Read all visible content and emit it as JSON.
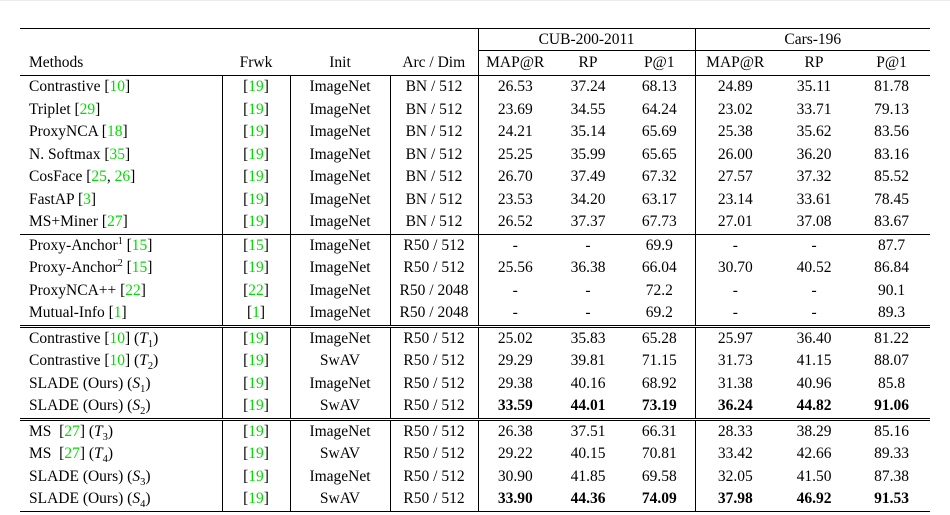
{
  "colors": {
    "citation_green": "#00dc00",
    "text": "#000000",
    "rule": "#000000",
    "background": "#ffffff"
  },
  "table": {
    "group_headers": [
      {
        "label": "CUB-200-2011",
        "span": 3
      },
      {
        "label": "Cars-196",
        "span": 3
      }
    ],
    "columns": [
      "Methods",
      "Frwk",
      "Init",
      "Arc / Dim",
      "MAP@R",
      "RP",
      "P@1",
      "MAP@R",
      "RP",
      "P@1"
    ],
    "sections": [
      {
        "rows": [
          {
            "method": [
              [
                "Contrastive [",
                "p"
              ],
              [
                "10",
                "c"
              ],
              [
                "]",
                "p"
              ]
            ],
            "frwk": [
              [
                "[",
                "p"
              ],
              [
                "19",
                "c"
              ],
              [
                "]",
                "p"
              ]
            ],
            "init": "ImageNet",
            "arc": "BN / 512",
            "values": [
              "26.53",
              "37.24",
              "68.13",
              "24.89",
              "35.11",
              "81.78"
            ],
            "bold": false
          },
          {
            "method": [
              [
                "Triplet [",
                "p"
              ],
              [
                "29",
                "c"
              ],
              [
                "]",
                "p"
              ]
            ],
            "frwk": [
              [
                "[",
                "p"
              ],
              [
                "19",
                "c"
              ],
              [
                "]",
                "p"
              ]
            ],
            "init": "ImageNet",
            "arc": "BN / 512",
            "values": [
              "23.69",
              "34.55",
              "64.24",
              "23.02",
              "33.71",
              "79.13"
            ],
            "bold": false
          },
          {
            "method": [
              [
                "ProxyNCA [",
                "p"
              ],
              [
                "18",
                "c"
              ],
              [
                "]",
                "p"
              ]
            ],
            "frwk": [
              [
                "[",
                "p"
              ],
              [
                "19",
                "c"
              ],
              [
                "]",
                "p"
              ]
            ],
            "init": "ImageNet",
            "arc": "BN / 512",
            "values": [
              "24.21",
              "35.14",
              "65.69",
              "25.38",
              "35.62",
              "83.56"
            ],
            "bold": false
          },
          {
            "method": [
              [
                "N. Softmax [",
                "p"
              ],
              [
                "35",
                "c"
              ],
              [
                "]",
                "p"
              ]
            ],
            "frwk": [
              [
                "[",
                "p"
              ],
              [
                "19",
                "c"
              ],
              [
                "]",
                "p"
              ]
            ],
            "init": "ImageNet",
            "arc": "BN / 512",
            "values": [
              "25.25",
              "35.99",
              "65.65",
              "26.00",
              "36.20",
              "83.16"
            ],
            "bold": false
          },
          {
            "method": [
              [
                "CosFace [",
                "p"
              ],
              [
                "25",
                "c"
              ],
              [
                ", ",
                "p"
              ],
              [
                "26",
                "c"
              ],
              [
                "]",
                "p"
              ]
            ],
            "frwk": [
              [
                "[",
                "p"
              ],
              [
                "19",
                "c"
              ],
              [
                "]",
                "p"
              ]
            ],
            "init": "ImageNet",
            "arc": "BN / 512",
            "values": [
              "26.70",
              "37.49",
              "67.32",
              "27.57",
              "37.32",
              "85.52"
            ],
            "bold": false
          },
          {
            "method": [
              [
                "FastAP [",
                "p"
              ],
              [
                "3",
                "c"
              ],
              [
                "]",
                "p"
              ]
            ],
            "frwk": [
              [
                "[",
                "p"
              ],
              [
                "19",
                "c"
              ],
              [
                "]",
                "p"
              ]
            ],
            "init": "ImageNet",
            "arc": "BN / 512",
            "values": [
              "23.53",
              "34.20",
              "63.17",
              "23.14",
              "33.61",
              "78.45"
            ],
            "bold": false
          },
          {
            "method": [
              [
                "MS+Miner [",
                "p"
              ],
              [
                "27",
                "c"
              ],
              [
                "]",
                "p"
              ]
            ],
            "frwk": [
              [
                "[",
                "p"
              ],
              [
                "19",
                "c"
              ],
              [
                "]",
                "p"
              ]
            ],
            "init": "ImageNet",
            "arc": "BN / 512",
            "values": [
              "26.52",
              "37.37",
              "67.73",
              "27.01",
              "37.08",
              "83.67"
            ],
            "bold": false
          }
        ]
      },
      {
        "rows": [
          {
            "method": [
              [
                "Proxy-Anchor",
                "p"
              ],
              [
                "1",
                "sup"
              ],
              [
                " [",
                "p"
              ],
              [
                "15",
                "c"
              ],
              [
                "]",
                "p"
              ]
            ],
            "frwk": [
              [
                "[",
                "p"
              ],
              [
                "15",
                "c"
              ],
              [
                "]",
                "p"
              ]
            ],
            "init": "ImageNet",
            "arc": "R50 / 512",
            "values": [
              "-",
              "-",
              "69.9",
              "-",
              "-",
              "87.7"
            ],
            "bold": false
          },
          {
            "method": [
              [
                "Proxy-Anchor",
                "p"
              ],
              [
                "2",
                "sup"
              ],
              [
                " [",
                "p"
              ],
              [
                "15",
                "c"
              ],
              [
                "]",
                "p"
              ]
            ],
            "frwk": [
              [
                "[",
                "p"
              ],
              [
                "19",
                "c"
              ],
              [
                "]",
                "p"
              ]
            ],
            "init": "ImageNet",
            "arc": "R50 / 512",
            "values": [
              "25.56",
              "36.38",
              "66.04",
              "30.70",
              "40.52",
              "86.84"
            ],
            "bold": false
          },
          {
            "method": [
              [
                "ProxyNCA++ [",
                "p"
              ],
              [
                "22",
                "c"
              ],
              [
                "]",
                "p"
              ]
            ],
            "frwk": [
              [
                "[",
                "p"
              ],
              [
                "22",
                "c"
              ],
              [
                "]",
                "p"
              ]
            ],
            "init": "ImageNet",
            "arc": "R50 / 2048",
            "values": [
              "-",
              "-",
              "72.2",
              "-",
              "-",
              "90.1"
            ],
            "bold": false
          },
          {
            "method": [
              [
                "Mutual-Info [",
                "p"
              ],
              [
                "1",
                "c"
              ],
              [
                "]",
                "p"
              ]
            ],
            "frwk": [
              [
                "[",
                "p"
              ],
              [
                "1",
                "c"
              ],
              [
                "]",
                "p"
              ]
            ],
            "init": "ImageNet",
            "arc": "R50 / 2048",
            "values": [
              "-",
              "-",
              "69.2",
              "-",
              "-",
              "89.3"
            ],
            "bold": false
          }
        ]
      },
      {
        "rows": [
          {
            "method": [
              [
                "Contrastive [",
                "p"
              ],
              [
                "10",
                "c"
              ],
              [
                "] (",
                "p"
              ],
              [
                "T",
                "i"
              ],
              [
                "1",
                "sub"
              ],
              [
                ")",
                "p"
              ]
            ],
            "frwk": [
              [
                "[",
                "p"
              ],
              [
                "19",
                "c"
              ],
              [
                "]",
                "p"
              ]
            ],
            "init": "ImageNet",
            "arc": "R50 / 512",
            "values": [
              "25.02",
              "35.83",
              "65.28",
              "25.97",
              "36.40",
              "81.22"
            ],
            "bold": false
          },
          {
            "method": [
              [
                "Contrastive [",
                "p"
              ],
              [
                "10",
                "c"
              ],
              [
                "] (",
                "p"
              ],
              [
                "T",
                "i"
              ],
              [
                "2",
                "sub"
              ],
              [
                ")",
                "p"
              ]
            ],
            "frwk": [
              [
                "[",
                "p"
              ],
              [
                "19",
                "c"
              ],
              [
                "]",
                "p"
              ]
            ],
            "init": "SwAV",
            "arc": "R50 / 512",
            "values": [
              "29.29",
              "39.81",
              "71.15",
              "31.73",
              "41.15",
              "88.07"
            ],
            "bold": false
          },
          {
            "method": [
              [
                "SLADE (Ours) (",
                "p"
              ],
              [
                "S",
                "i"
              ],
              [
                "1",
                "sub"
              ],
              [
                ")",
                "p"
              ]
            ],
            "frwk": [
              [
                "[",
                "p"
              ],
              [
                "19",
                "c"
              ],
              [
                "]",
                "p"
              ]
            ],
            "init": "ImageNet",
            "arc": "R50 / 512",
            "values": [
              "29.38",
              "40.16",
              "68.92",
              "31.38",
              "40.96",
              "85.8"
            ],
            "bold": false
          },
          {
            "method": [
              [
                "SLADE (Ours) (",
                "p"
              ],
              [
                "S",
                "i"
              ],
              [
                "2",
                "sub"
              ],
              [
                ")",
                "p"
              ]
            ],
            "frwk": [
              [
                "[",
                "p"
              ],
              [
                "19",
                "c"
              ],
              [
                "]",
                "p"
              ]
            ],
            "init": "SwAV",
            "arc": "R50 / 512",
            "values": [
              "33.59",
              "44.01",
              "73.19",
              "36.24",
              "44.82",
              "91.06"
            ],
            "bold": true
          }
        ]
      },
      {
        "rows": [
          {
            "method": [
              [
                "MS [",
                "p"
              ],
              [
                "27",
                "c"
              ],
              [
                "] (",
                "p"
              ],
              [
                "T",
                "i"
              ],
              [
                "3",
                "sub"
              ],
              [
                ")",
                "p"
              ]
            ],
            "frwk": [
              [
                "[",
                "p"
              ],
              [
                "19",
                "c"
              ],
              [
                "]",
                "p"
              ]
            ],
            "init": "ImageNet",
            "arc": "R50 / 512",
            "values": [
              "26.38",
              "37.51",
              "66.31",
              "28.33",
              "38.29",
              "85.16"
            ],
            "bold": false
          },
          {
            "method": [
              [
                "MS [",
                "p"
              ],
              [
                "27",
                "c"
              ],
              [
                "] (",
                "p"
              ],
              [
                "T",
                "i"
              ],
              [
                "4",
                "sub"
              ],
              [
                ")",
                "p"
              ]
            ],
            "frwk": [
              [
                "[",
                "p"
              ],
              [
                "19",
                "c"
              ],
              [
                "]",
                "p"
              ]
            ],
            "init": "SwAV",
            "arc": "R50 / 512",
            "values": [
              "29.22",
              "40.15",
              "70.81",
              "33.42",
              "42.66",
              "89.33"
            ],
            "bold": false
          },
          {
            "method": [
              [
                "SLADE (Ours) (",
                "p"
              ],
              [
                "S",
                "i"
              ],
              [
                "3",
                "sub"
              ],
              [
                ")",
                "p"
              ]
            ],
            "frwk": [
              [
                "[",
                "p"
              ],
              [
                "19",
                "c"
              ],
              [
                "]",
                "p"
              ]
            ],
            "init": "ImageNet",
            "arc": "R50 / 512",
            "values": [
              "30.90",
              "41.85",
              "69.58",
              "32.05",
              "41.50",
              "87.38"
            ],
            "bold": false
          },
          {
            "method": [
              [
                "SLADE (Ours) (",
                "p"
              ],
              [
                "S",
                "i"
              ],
              [
                "4",
                "sub"
              ],
              [
                ")",
                "p"
              ]
            ],
            "frwk": [
              [
                "[",
                "p"
              ],
              [
                "19",
                "c"
              ],
              [
                "]",
                "p"
              ]
            ],
            "init": "SwAV",
            "arc": "R50 / 512",
            "values": [
              "33.90",
              "44.36",
              "74.09",
              "37.98",
              "46.92",
              "91.53"
            ],
            "bold": true
          }
        ]
      }
    ]
  }
}
